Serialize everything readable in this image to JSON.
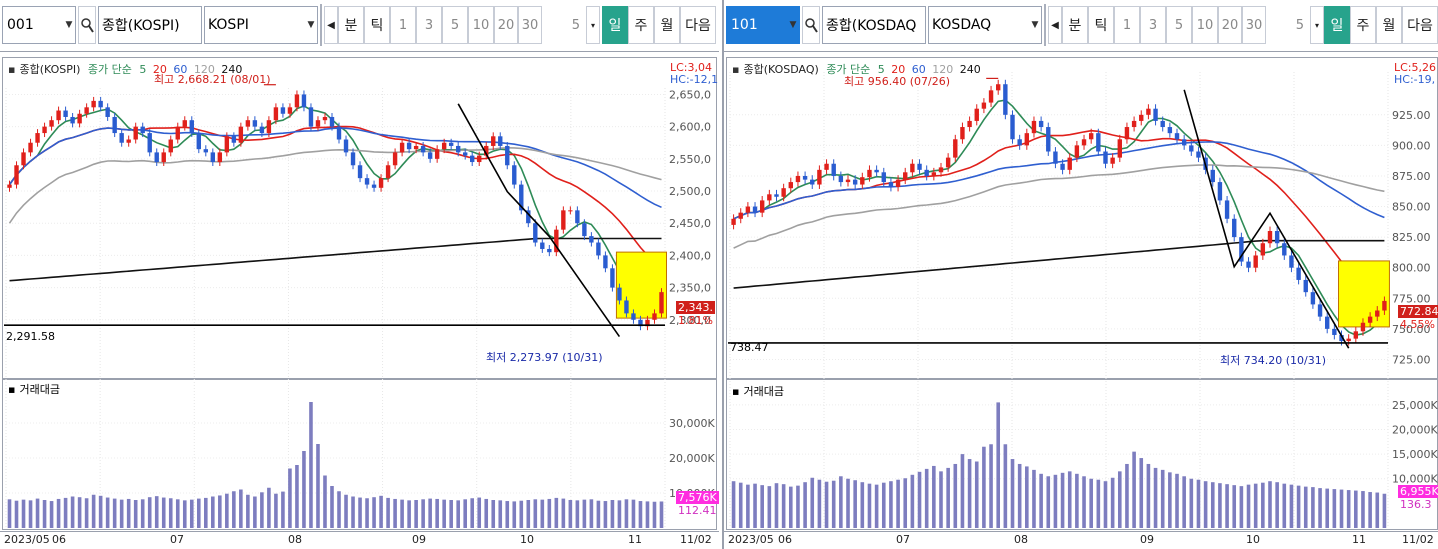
{
  "left": {
    "toolbar": {
      "code": "001",
      "name": "종합(KOSPI)",
      "label": "KOSPI",
      "buttons": [
        "분",
        "틱",
        "1",
        "3",
        "5",
        "10",
        "20",
        "30"
      ],
      "period_value": "5",
      "tabs": [
        "일",
        "주",
        "월",
        "다음"
      ]
    },
    "legend": {
      "series_name": "종합(KOSPI)",
      "ma_label": "종가 단순",
      "ma": [
        "5",
        "20",
        "60",
        "120",
        "240"
      ]
    },
    "lc": "LC:3,04",
    "hc": "HC:-12,1",
    "high_label": "최고 2,668.21 (08/01)",
    "low_label": "최저 2,273.97 (10/31)",
    "hline_label": "2,291.58",
    "last_price": "2,343.",
    "last_change": "1.81%",
    "vol_title": "거래대금",
    "vol_last": "7,576K",
    "vol_sub": "112.41",
    "x_labels": [
      "2023/05",
      "06",
      "07",
      "08",
      "09",
      "10",
      "11"
    ],
    "date_corner": "11/02"
  },
  "right": {
    "toolbar": {
      "code": "101",
      "name": "종합(KOSDAQ",
      "label": "KOSDAQ",
      "buttons": [
        "분",
        "틱",
        "1",
        "3",
        "5",
        "10",
        "20",
        "30"
      ],
      "period_value": "5",
      "tabs": [
        "일",
        "주",
        "월",
        "다음"
      ]
    },
    "legend": {
      "series_name": "종합(KOSDAQ)",
      "ma_label": "종가 단순",
      "ma": [
        "5",
        "20",
        "60",
        "120",
        "240"
      ]
    },
    "lc": "LC:5,26",
    "hc": "HC:-19,",
    "high_label": "최고 956.40 (07/26)",
    "low_label": "최저 734.20 (10/31)",
    "hline_label": "738.47",
    "last_price": "772.84",
    "last_change": "4.55%",
    "vol_title": "거래대금",
    "vol_last": "6,955K",
    "vol_sub": "136.3",
    "x_labels": [
      "2023/05",
      "06",
      "07",
      "08",
      "09",
      "10",
      "11"
    ],
    "date_corner": "11/02"
  },
  "colors": {
    "up": "#e0201b",
    "down": "#2a5cd0",
    "ma5": "#2e8b57",
    "ma20": "#e0201b",
    "ma60": "#2f5fd0",
    "ma120": "#a0a0a0",
    "ma240": "#111111",
    "volume": "#7d7dbf",
    "highlight": "#ffff00"
  },
  "chart_data": [
    {
      "type": "candlestick",
      "title": "종합(KOSPI)",
      "ylim": [
        2250,
        2660
      ],
      "y_ticks": [
        "2,650,0",
        "2,600,0",
        "2,550,0",
        "2,500,0",
        "2,450,0",
        "2,400,0",
        "2,350,0",
        "2,300,0"
      ],
      "x_tick_labels": [
        "2023/05",
        "06",
        "07",
        "08",
        "09",
        "10",
        "11"
      ],
      "close": [
        2510,
        2540,
        2560,
        2575,
        2590,
        2600,
        2610,
        2625,
        2615,
        2605,
        2620,
        2630,
        2640,
        2630,
        2615,
        2590,
        2575,
        2580,
        2600,
        2590,
        2560,
        2545,
        2560,
        2580,
        2600,
        2610,
        2590,
        2565,
        2560,
        2545,
        2560,
        2585,
        2575,
        2600,
        2610,
        2600,
        2590,
        2610,
        2630,
        2620,
        2630,
        2650,
        2630,
        2600,
        2610,
        2615,
        2600,
        2580,
        2560,
        2540,
        2520,
        2510,
        2505,
        2520,
        2540,
        2560,
        2575,
        2565,
        2570,
        2560,
        2550,
        2565,
        2575,
        2570,
        2560,
        2555,
        2545,
        2555,
        2570,
        2585,
        2570,
        2540,
        2510,
        2470,
        2450,
        2420,
        2410,
        2405,
        2440,
        2470,
        2470,
        2450,
        2430,
        2420,
        2400,
        2380,
        2350,
        2330,
        2310,
        2300,
        2290,
        2300,
        2310,
        2343
      ],
      "ma_lines": [
        "5",
        "20",
        "60",
        "120",
        "240"
      ],
      "high_marker": 2668.21,
      "low_marker": 2273.97,
      "hline": 2291.58,
      "volume_ylim": [
        0,
        38000
      ],
      "volume_ticks": [
        "30,000K",
        "20,000K",
        "10,000K"
      ],
      "volume": [
        8200,
        7800,
        8100,
        7900,
        8400,
        8000,
        7700,
        8300,
        8600,
        9000,
        8800,
        8500,
        9500,
        9200,
        8700,
        8400,
        8100,
        8300,
        8000,
        8200,
        8800,
        9100,
        8700,
        8500,
        8200,
        7900,
        8100,
        8400,
        8600,
        9000,
        9300,
        9800,
        10500,
        11000,
        9500,
        9000,
        10200,
        11500,
        9800,
        10400,
        17000,
        18000,
        22000,
        36000,
        24000,
        15000,
        12000,
        10500,
        9500,
        9000,
        8700,
        8500,
        8800,
        9200,
        8600,
        8300,
        8100,
        7900,
        8000,
        8200,
        8400,
        8300,
        8100,
        8000,
        7900,
        8200,
        8500,
        8700,
        8300,
        8000,
        7900,
        7700,
        7600,
        7800,
        8000,
        8200,
        8100,
        8300,
        8600,
        8400,
        8000,
        7900,
        8100,
        8200,
        7800,
        7700,
        8000,
        7900,
        8200,
        8100,
        7700,
        7600,
        7500,
        7576
      ]
    },
    {
      "type": "candlestick",
      "title": "종합(KOSDAQ)",
      "ylim": [
        718,
        960
      ],
      "y_ticks": [
        "925.00",
        "900.00",
        "875.00",
        "850.00",
        "825.00",
        "800.00",
        "775.00",
        "750.00",
        "725.00"
      ],
      "x_tick_labels": [
        "2023/05",
        "06",
        "07",
        "08",
        "09",
        "10",
        "11"
      ],
      "close": [
        840,
        845,
        850,
        845,
        855,
        860,
        858,
        865,
        870,
        875,
        872,
        868,
        880,
        885,
        875,
        870,
        872,
        868,
        874,
        880,
        878,
        870,
        866,
        872,
        878,
        885,
        880,
        875,
        878,
        882,
        890,
        905,
        915,
        920,
        930,
        935,
        945,
        950,
        925,
        905,
        900,
        910,
        920,
        915,
        895,
        885,
        880,
        890,
        900,
        905,
        910,
        895,
        885,
        890,
        905,
        915,
        920,
        925,
        930,
        920,
        915,
        910,
        905,
        900,
        895,
        890,
        880,
        870,
        855,
        840,
        825,
        805,
        800,
        810,
        820,
        830,
        820,
        810,
        800,
        790,
        780,
        770,
        760,
        750,
        745,
        740,
        742,
        748,
        755,
        760,
        765,
        772.84
      ],
      "ma_lines": [
        "5",
        "20",
        "60",
        "120",
        "240"
      ],
      "high_marker": 956.4,
      "low_marker": 734.2,
      "hline": 738.47,
      "volume_ylim": [
        0,
        27000
      ],
      "volume_ticks": [
        "25,000K",
        "20,000K",
        "15,000K",
        "10,000K"
      ],
      "volume": [
        9500,
        9200,
        8800,
        9000,
        8700,
        8500,
        9100,
        8900,
        8400,
        8600,
        9300,
        10200,
        9800,
        9400,
        9600,
        10500,
        10000,
        9700,
        9300,
        9000,
        8800,
        9200,
        9500,
        9800,
        10100,
        10800,
        11400,
        12000,
        12600,
        11500,
        12200,
        13000,
        15000,
        14000,
        13500,
        16500,
        17000,
        25500,
        17000,
        14000,
        13000,
        12500,
        11800,
        11000,
        10500,
        10800,
        11200,
        11500,
        11000,
        10500,
        10000,
        9800,
        9500,
        10200,
        11500,
        13000,
        15500,
        14200,
        13000,
        12200,
        11800,
        11300,
        11000,
        10500,
        10000,
        9800,
        9500,
        9300,
        9100,
        8900,
        8700,
        8500,
        8800,
        9000,
        9200,
        9500,
        9300,
        9000,
        8800,
        8600,
        8400,
        8300,
        8100,
        8000,
        7900,
        7800,
        7700,
        7600,
        7500,
        7300,
        7200,
        6955
      ]
    }
  ]
}
